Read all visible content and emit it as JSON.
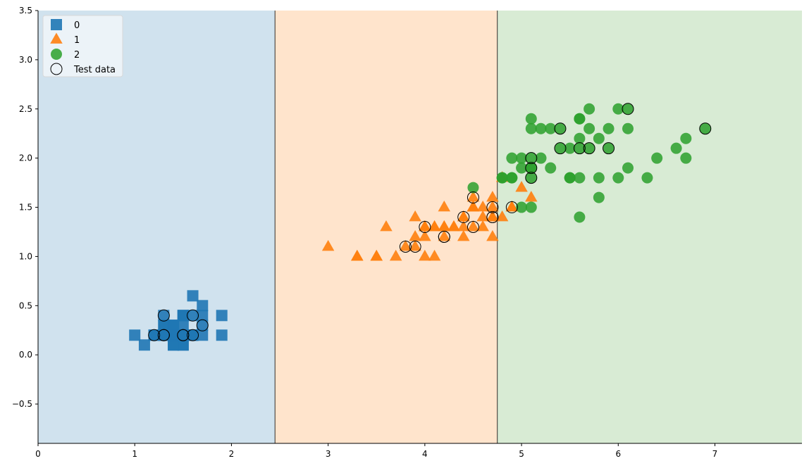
{
  "chart_data": {
    "type": "scatter",
    "title": "",
    "xlabel": "",
    "ylabel": "",
    "xlim": [
      0,
      7.9
    ],
    "ylim": [
      -0.9,
      3.5
    ],
    "x_ticks": [
      0,
      1,
      2,
      3,
      4,
      5,
      6,
      7
    ],
    "y_ticks": [
      -0.5,
      0.0,
      0.5,
      1.0,
      1.5,
      2.0,
      2.5,
      3.0,
      3.5
    ],
    "y_tick_labels": [
      "−0.5",
      "0.0",
      "0.5",
      "1.0",
      "1.5",
      "2.0",
      "2.5",
      "3.0",
      "3.5"
    ],
    "grid": false,
    "legend_position": "top-left",
    "decision_regions": [
      {
        "class": "0",
        "x_from": 0,
        "x_to": 2.45,
        "color": "#d0e2ee"
      },
      {
        "class": "1",
        "x_from": 2.45,
        "x_to": 4.75,
        "color": "#ffe4cc"
      },
      {
        "class": "2",
        "x_from": 4.75,
        "x_to": 7.9,
        "color": "#d8ebd4"
      }
    ],
    "decision_boundaries": [
      2.45,
      4.75
    ],
    "series": [
      {
        "name": "0",
        "marker": "square",
        "color": "#1f77b4",
        "x": [
          1.4,
          1.4,
          1.3,
          1.5,
          1.4,
          1.7,
          1.4,
          1.5,
          1.4,
          1.5,
          1.5,
          1.6,
          1.4,
          1.1,
          1.2,
          1.5,
          1.3,
          1.4,
          1.7,
          1.5,
          1.7,
          1.5,
          1.0,
          1.7,
          1.9,
          1.6,
          1.6,
          1.5,
          1.4,
          1.6,
          1.6,
          1.5,
          1.5,
          1.4,
          1.5,
          1.2,
          1.3,
          1.4,
          1.3,
          1.5,
          1.3,
          1.3,
          1.3,
          1.6,
          1.9,
          1.4,
          1.6,
          1.4,
          1.5,
          1.4
        ],
        "y": [
          0.2,
          0.2,
          0.2,
          0.2,
          0.2,
          0.4,
          0.3,
          0.2,
          0.2,
          0.1,
          0.2,
          0.2,
          0.1,
          0.1,
          0.2,
          0.4,
          0.4,
          0.3,
          0.3,
          0.3,
          0.2,
          0.4,
          0.2,
          0.5,
          0.2,
          0.2,
          0.4,
          0.2,
          0.2,
          0.2,
          0.2,
          0.4,
          0.1,
          0.2,
          0.2,
          0.2,
          0.2,
          0.1,
          0.2,
          0.2,
          0.3,
          0.3,
          0.2,
          0.6,
          0.4,
          0.3,
          0.2,
          0.2,
          0.2,
          0.2
        ]
      },
      {
        "name": "1",
        "marker": "triangle",
        "color": "#ff7f0e",
        "x": [
          4.7,
          4.5,
          4.9,
          4.0,
          4.6,
          4.5,
          4.7,
          3.3,
          4.6,
          3.9,
          3.5,
          4.2,
          4.0,
          4.7,
          3.6,
          4.4,
          4.5,
          4.1,
          4.5,
          3.9,
          4.8,
          4.0,
          4.9,
          4.7,
          4.3,
          4.4,
          4.8,
          5.0,
          4.5,
          3.5,
          3.8,
          3.7,
          3.9,
          5.1,
          4.5,
          4.5,
          4.7,
          4.4,
          4.1,
          4.0,
          4.4,
          4.6,
          4.0,
          3.3,
          4.2,
          4.2,
          4.2,
          4.3,
          3.0,
          4.1
        ],
        "y": [
          1.4,
          1.5,
          1.5,
          1.3,
          1.5,
          1.3,
          1.6,
          1.0,
          1.3,
          1.4,
          1.0,
          1.5,
          1.0,
          1.4,
          1.3,
          1.4,
          1.5,
          1.0,
          1.5,
          1.1,
          1.8,
          1.3,
          1.5,
          1.2,
          1.3,
          1.4,
          1.4,
          1.7,
          1.5,
          1.0,
          1.1,
          1.0,
          1.2,
          1.6,
          1.5,
          1.6,
          1.5,
          1.3,
          1.3,
          1.3,
          1.2,
          1.4,
          1.2,
          1.0,
          1.3,
          1.2,
          1.3,
          1.3,
          1.1,
          1.3
        ]
      },
      {
        "name": "2",
        "marker": "circle",
        "color": "#2ca02c",
        "x": [
          6.0,
          5.1,
          5.9,
          5.6,
          5.8,
          6.6,
          4.5,
          6.3,
          5.8,
          6.1,
          5.1,
          5.3,
          5.5,
          5.0,
          5.1,
          5.3,
          5.5,
          6.7,
          6.9,
          5.0,
          5.7,
          4.9,
          6.7,
          4.9,
          5.7,
          6.0,
          4.8,
          4.9,
          5.6,
          5.8,
          6.1,
          6.4,
          5.6,
          5.1,
          5.6,
          6.1,
          5.6,
          5.5,
          4.8,
          5.4,
          5.6,
          5.1,
          5.1,
          5.9,
          5.7,
          5.2,
          5.0,
          5.2,
          5.4,
          5.1
        ],
        "y": [
          2.5,
          1.9,
          2.1,
          1.8,
          2.2,
          2.1,
          1.7,
          1.8,
          1.8,
          2.5,
          2.0,
          1.9,
          2.1,
          2.0,
          2.4,
          2.3,
          1.8,
          2.2,
          2.3,
          1.5,
          2.3,
          2.0,
          2.0,
          1.8,
          2.1,
          1.8,
          1.8,
          1.8,
          2.1,
          1.6,
          1.9,
          2.0,
          2.2,
          1.5,
          1.4,
          2.3,
          2.4,
          1.8,
          1.8,
          2.1,
          2.4,
          2.3,
          1.9,
          2.3,
          2.5,
          2.3,
          1.9,
          2.0,
          2.3,
          1.8
        ]
      },
      {
        "name": "Test data",
        "marker": "open-circle",
        "color": "#000000",
        "x": [
          1.3,
          1.3,
          1.2,
          1.6,
          1.3,
          1.5,
          1.5,
          1.7,
          1.6,
          3.8,
          3.9,
          4.0,
          4.2,
          4.2,
          4.4,
          4.5,
          4.5,
          4.7,
          4.7,
          4.7,
          4.9,
          5.1,
          5.1,
          5.1,
          5.4,
          5.4,
          5.6,
          5.7,
          5.9,
          6.1,
          6.9
        ],
        "y": [
          0.2,
          0.4,
          0.2,
          0.4,
          0.2,
          0.2,
          0.2,
          0.3,
          0.2,
          1.1,
          1.1,
          1.3,
          1.2,
          1.2,
          1.4,
          1.3,
          1.6,
          1.4,
          1.4,
          1.5,
          1.5,
          1.8,
          1.9,
          2.0,
          2.3,
          2.1,
          2.1,
          2.1,
          2.1,
          2.5,
          2.3
        ]
      }
    ]
  }
}
